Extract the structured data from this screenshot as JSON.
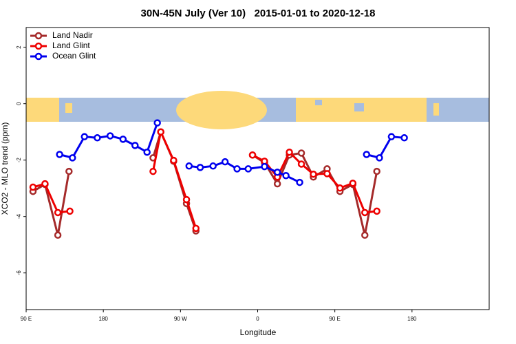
{
  "chart_data": {
    "type": "line",
    "title": "30N-45N July (Ver 10)   2015-01-01 to 2020-12-18",
    "x_label": "Longitude",
    "y_label": "XCO2 - MLO trend (ppm)",
    "xlim": [
      90,
      630
    ],
    "ylim": [
      -7.3,
      2.7
    ],
    "xticks": [
      {
        "value": 90,
        "label": "90 E"
      },
      {
        "value": 180,
        "label": "180"
      },
      {
        "value": 270,
        "label": "90 W"
      },
      {
        "value": 360,
        "label": "0"
      },
      {
        "value": 450,
        "label": "90 E"
      },
      {
        "value": 540,
        "label": "180"
      }
    ],
    "yticks": [
      -6,
      -4,
      -2,
      0,
      2
    ],
    "grid": false,
    "legend": "topleft",
    "series": [
      {
        "name": "Land Nadir",
        "color": "#a52a2a",
        "x": [
          98,
          112,
          127,
          140,
          null,
          238,
          247,
          262,
          277,
          288,
          null,
          354,
          368,
          383,
          397,
          411,
          425,
          441,
          456,
          471,
          485,
          499
        ],
        "values": [
          -3.11,
          -2.86,
          -4.66,
          -2.4,
          null,
          -1.92,
          -1.0,
          -2.04,
          -3.54,
          -4.51,
          null,
          -1.82,
          -2.09,
          -2.84,
          -1.82,
          -1.75,
          -2.6,
          -2.31,
          -3.11,
          -2.86,
          -4.66,
          -2.4
        ]
      },
      {
        "name": "Land Glint",
        "color": "#ee0000",
        "x": [
          98,
          112,
          127,
          141,
          null,
          238,
          247,
          262,
          277,
          288,
          null,
          354,
          368,
          383,
          397,
          411,
          425,
          441,
          456,
          471,
          485,
          499
        ],
        "values": [
          -2.96,
          -2.84,
          -3.86,
          -3.81,
          null,
          -2.4,
          -1.0,
          -2.01,
          -3.4,
          -4.42,
          null,
          -1.82,
          -2.04,
          -2.6,
          -1.72,
          -2.14,
          -2.5,
          -2.48,
          -2.99,
          -2.82,
          -3.86,
          -3.81
        ]
      },
      {
        "name": "Ocean Glint",
        "color": "#0000ee",
        "x": [
          129,
          144,
          158,
          173,
          188,
          203,
          217,
          231,
          243,
          null,
          280,
          293,
          308,
          322,
          336,
          349,
          368,
          383,
          393,
          409,
          null,
          487,
          502,
          516,
          531
        ],
        "values": [
          -1.8,
          -1.92,
          -1.17,
          -1.21,
          -1.14,
          -1.26,
          -1.48,
          -1.72,
          -0.68,
          null,
          -2.21,
          -2.26,
          -2.21,
          -2.06,
          -2.31,
          -2.31,
          -2.23,
          -2.43,
          -2.55,
          -2.79,
          null,
          -1.8,
          -1.92,
          -1.17,
          -1.21
        ]
      }
    ]
  }
}
